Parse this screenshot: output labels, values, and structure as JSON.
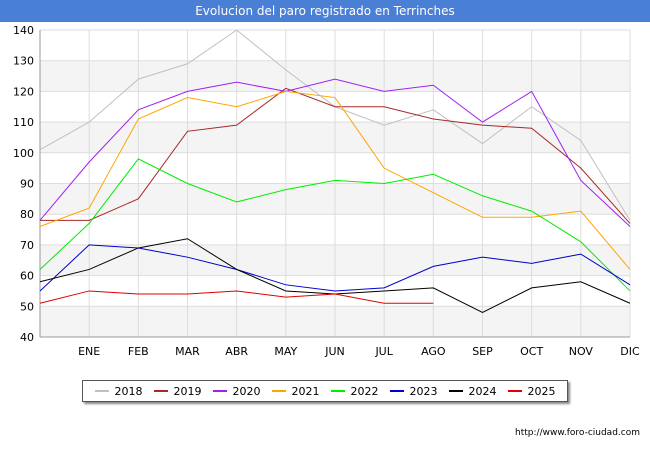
{
  "chart_data": {
    "type": "line",
    "title": "Evolucion del paro registrado en Terrinches",
    "categories": [
      "",
      "ENE",
      "FEB",
      "MAR",
      "ABR",
      "MAY",
      "JUN",
      "JUL",
      "AGO",
      "SEP",
      "OCT",
      "NOV",
      "DIC"
    ],
    "ylim": [
      40,
      140
    ],
    "yticks": [
      40,
      50,
      60,
      70,
      80,
      90,
      100,
      110,
      120,
      130,
      140
    ],
    "grid": true,
    "legend_position": "bottom",
    "series": [
      {
        "name": "2018",
        "color": "#c0c0c0",
        "values": [
          101,
          110,
          124,
          129,
          140,
          127,
          115,
          109,
          114,
          103,
          115,
          104,
          78
        ]
      },
      {
        "name": "2019",
        "color": "#a52a2a",
        "values": [
          78,
          78,
          85,
          107,
          109,
          121,
          115,
          115,
          111,
          109,
          108,
          95,
          77
        ]
      },
      {
        "name": "2020",
        "color": "#a020f0",
        "values": [
          78,
          97,
          114,
          120,
          123,
          120,
          124,
          120,
          122,
          110,
          120,
          91,
          76
        ]
      },
      {
        "name": "2021",
        "color": "#ffa500",
        "values": [
          76,
          82,
          111,
          118,
          115,
          120,
          118,
          95,
          87,
          79,
          79,
          81,
          62
        ]
      },
      {
        "name": "2022",
        "color": "#00ee00",
        "values": [
          62,
          77,
          98,
          90,
          84,
          88,
          91,
          90,
          93,
          86,
          81,
          71,
          55
        ]
      },
      {
        "name": "2023",
        "color": "#0000cd",
        "values": [
          55,
          70,
          69,
          66,
          62,
          57,
          55,
          56,
          63,
          66,
          64,
          67,
          57
        ]
      },
      {
        "name": "2024",
        "color": "#000000",
        "values": [
          58,
          62,
          69,
          72,
          62,
          55,
          54,
          55,
          56,
          48,
          56,
          58,
          51
        ]
      },
      {
        "name": "2025",
        "color": "#e00000",
        "values": [
          51,
          55,
          54,
          54,
          55,
          53,
          54,
          51,
          51,
          null,
          null,
          null,
          null
        ]
      }
    ]
  },
  "footer": {
    "url": "http://www.foro-ciudad.com"
  }
}
